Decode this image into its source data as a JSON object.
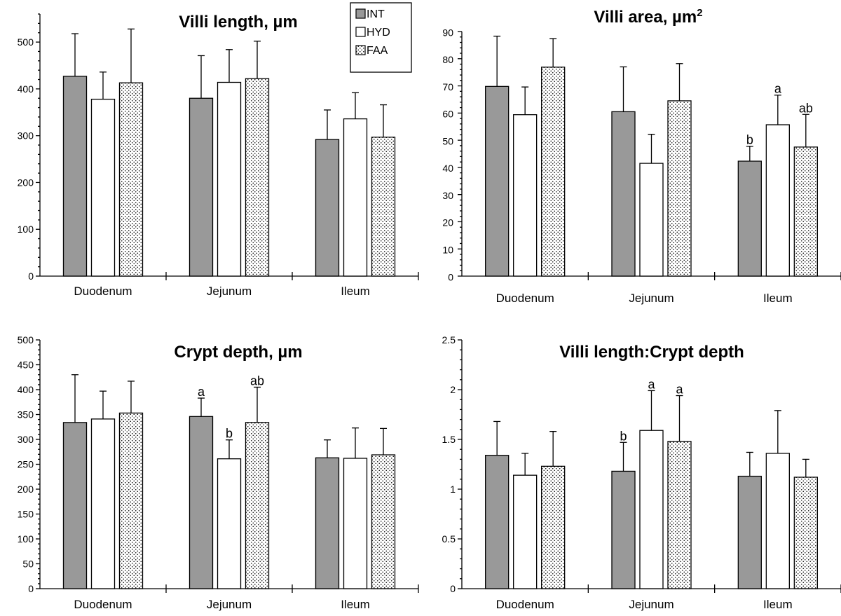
{
  "legend": {
    "entries": [
      {
        "name": "INT",
        "fill": "#999999"
      },
      {
        "name": "HYD",
        "fill": "#ffffff"
      },
      {
        "name": "FAA",
        "fill": "dots"
      }
    ]
  },
  "chart_data": [
    {
      "type": "bar",
      "title": "Villi length, µm",
      "categories": [
        "Duodenum",
        "Jejunum",
        "Ileum"
      ],
      "ylim": [
        0,
        560
      ],
      "yticks": [
        0,
        100,
        200,
        300,
        400,
        500
      ],
      "series": [
        {
          "name": "INT",
          "values": [
            427,
            380,
            292
          ],
          "errors": [
            91,
            91,
            63
          ],
          "labels": [
            "",
            "",
            ""
          ]
        },
        {
          "name": "HYD",
          "values": [
            378,
            414,
            336
          ],
          "errors": [
            58,
            70,
            56
          ],
          "labels": [
            "",
            "",
            ""
          ]
        },
        {
          "name": "FAA",
          "values": [
            413,
            422,
            297
          ],
          "errors": [
            115,
            80,
            69
          ],
          "labels": [
            "",
            "",
            ""
          ]
        }
      ],
      "grid": false
    },
    {
      "type": "bar",
      "title": "Villi area, µm",
      "title_superscript": "2",
      "categories": [
        "Duodenum",
        "Jejunum",
        "Ileum"
      ],
      "ylim": [
        0,
        90
      ],
      "yticks": [
        0,
        10,
        20,
        30,
        40,
        50,
        60,
        70,
        80,
        90
      ],
      "series": [
        {
          "name": "INT",
          "values": [
            69.8,
            60.5,
            42.3
          ],
          "errors": [
            18.5,
            16.5,
            5.5
          ],
          "labels": [
            "",
            "",
            "b"
          ]
        },
        {
          "name": "HYD",
          "values": [
            59.4,
            41.5,
            55.7
          ],
          "errors": [
            10.2,
            10.7,
            10.9
          ],
          "labels": [
            "",
            "",
            "a"
          ]
        },
        {
          "name": "FAA",
          "values": [
            76.9,
            64.5,
            47.5
          ],
          "errors": [
            10.5,
            13.7,
            12.0
          ],
          "labels": [
            "",
            "",
            "ab"
          ]
        }
      ],
      "grid": false
    },
    {
      "type": "bar",
      "title": "Crypt depth, µm",
      "categories": [
        "Duodenum",
        "Jejunum",
        "Ileum"
      ],
      "ylim": [
        0,
        500
      ],
      "yticks": [
        0,
        50,
        100,
        150,
        200,
        250,
        300,
        350,
        400,
        450,
        500
      ],
      "series": [
        {
          "name": "INT",
          "values": [
            334,
            346,
            263
          ],
          "errors": [
            96,
            37,
            36
          ],
          "labels": [
            "",
            "a",
            ""
          ]
        },
        {
          "name": "HYD",
          "values": [
            341,
            261,
            262
          ],
          "errors": [
            56,
            38,
            61
          ],
          "labels": [
            "",
            "b",
            ""
          ]
        },
        {
          "name": "FAA",
          "values": [
            353,
            334,
            269
          ],
          "errors": [
            64,
            71,
            53
          ],
          "labels": [
            "",
            "ab",
            ""
          ]
        }
      ],
      "grid": false
    },
    {
      "type": "bar",
      "title": "Villi length:Crypt depth",
      "categories": [
        "Duodenum",
        "Jejunum",
        "Ileum"
      ],
      "ylim": [
        0,
        2.5
      ],
      "yticks": [
        "0",
        "0.5",
        "1",
        "1.5",
        "2",
        "2.5"
      ],
      "series": [
        {
          "name": "INT",
          "values": [
            1.34,
            1.18,
            1.13
          ],
          "errors": [
            0.34,
            0.29,
            0.24
          ],
          "labels": [
            "",
            "b",
            ""
          ]
        },
        {
          "name": "HYD",
          "values": [
            1.14,
            1.59,
            1.36
          ],
          "errors": [
            0.22,
            0.4,
            0.43
          ],
          "labels": [
            "",
            "a",
            ""
          ]
        },
        {
          "name": "FAA",
          "values": [
            1.23,
            1.48,
            1.12
          ],
          "errors": [
            0.35,
            0.46,
            0.18
          ],
          "labels": [
            "",
            "a",
            ""
          ]
        }
      ],
      "grid": false
    }
  ]
}
